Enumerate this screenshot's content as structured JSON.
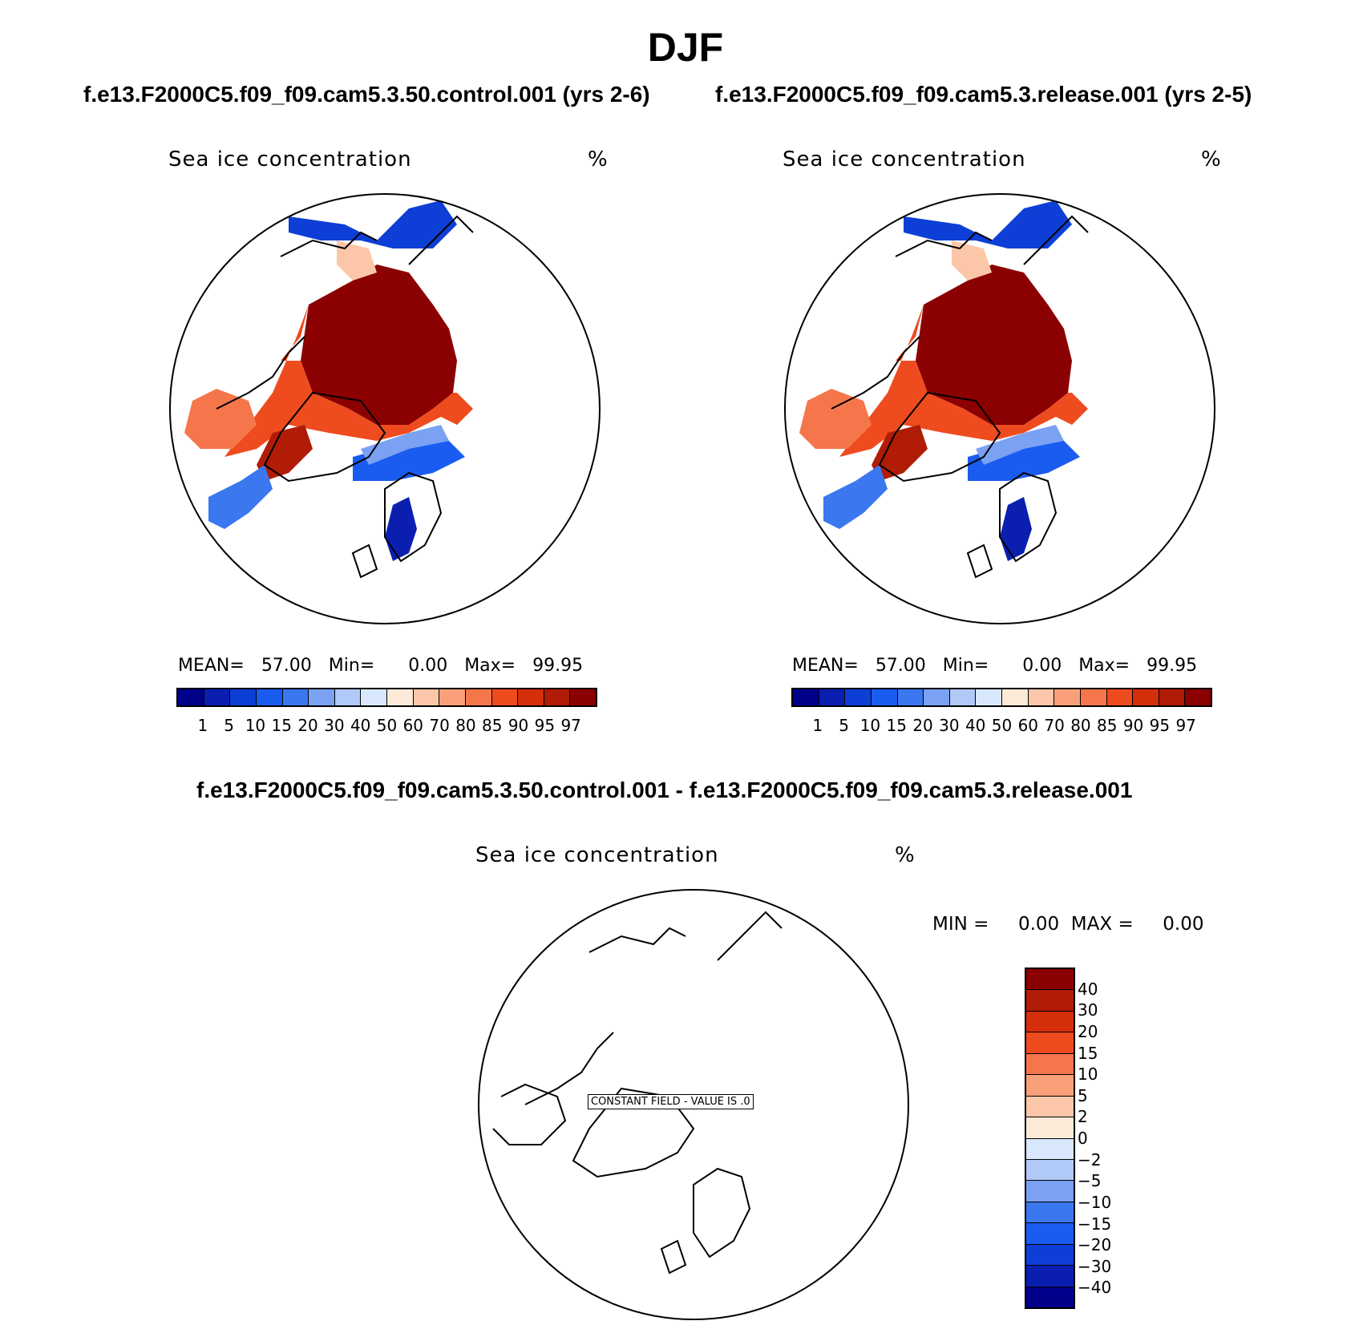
{
  "season": "DJF",
  "panels": [
    {
      "case_title": "f.e13.F2000C5.f09_f09.cam5.3.50.control.001 (yrs 2-6)",
      "var_name": "Sea ice concentration",
      "units": "%",
      "stats": {
        "mean_label": "MEAN=",
        "mean": "57.00",
        "min_label": "Min=",
        "min": "0.00",
        "max_label": "Max=",
        "max": "99.95"
      },
      "levels": [
        "1",
        "5",
        "10",
        "15",
        "20",
        "30",
        "40",
        "50",
        "60",
        "70",
        "80",
        "85",
        "90",
        "95",
        "97"
      ]
    },
    {
      "case_title": "f.e13.F2000C5.f09_f09.cam5.3.release.001 (yrs 2-5)",
      "var_name": "Sea ice concentration",
      "units": "%",
      "stats": {
        "mean_label": "MEAN=",
        "mean": "57.00",
        "min_label": "Min=",
        "min": "0.00",
        "max_label": "Max=",
        "max": "99.95"
      },
      "levels": [
        "1",
        "5",
        "10",
        "15",
        "20",
        "30",
        "40",
        "50",
        "60",
        "70",
        "80",
        "85",
        "90",
        "95",
        "97"
      ]
    }
  ],
  "diff_panel": {
    "title": "f.e13.F2000C5.f09_f09.cam5.3.50.control.001 - f.e13.F2000C5.f09_f09.cam5.3.release.001",
    "var_name": "Sea ice concentration",
    "units": "%",
    "stats_text": "MIN =     0.00  MAX =     0.00",
    "constant_field_label": "CONSTANT FIELD - VALUE IS .0",
    "levels": [
      "40",
      "30",
      "20",
      "15",
      "10",
      "5",
      "2",
      "0",
      "−2",
      "−5",
      "−10",
      "−15",
      "−20",
      "−30",
      "−40"
    ]
  },
  "colors": {
    "abs_scale": [
      "#00008b",
      "#0a1fb0",
      "#0d3fd6",
      "#1a5cf0",
      "#3b78ef",
      "#7aa1f2",
      "#b0c9f7",
      "#d8e7fb",
      "#fde9d8",
      "#fcc7a8",
      "#f9a07a",
      "#f5764a",
      "#ee4b1f",
      "#d42e0b",
      "#b01c05",
      "#8b0000"
    ],
    "diff_scale": [
      "#8b0000",
      "#b01c05",
      "#d42e0b",
      "#ee4b1f",
      "#f5764a",
      "#f9a07a",
      "#fcc7a8",
      "#fde9d8",
      "#d8e7fb",
      "#b0c9f7",
      "#7aa1f2",
      "#3b78ef",
      "#1a5cf0",
      "#0d3fd6",
      "#0a1fb0",
      "#00008b"
    ]
  },
  "chart_data": [
    {
      "type": "heatmap",
      "title": "f.e13.F2000C5.f09_f09.cam5.3.50.control.001 (yrs 2-6)",
      "variable": "Sea ice concentration",
      "units": "%",
      "projection": "polar stereographic (north pole)",
      "mean": 57.0,
      "min": 0.0,
      "max": 99.95,
      "contour_levels": [
        1,
        5,
        10,
        15,
        20,
        30,
        40,
        50,
        60,
        70,
        80,
        85,
        90,
        95,
        97
      ]
    },
    {
      "type": "heatmap",
      "title": "f.e13.F2000C5.f09_f09.cam5.3.release.001 (yrs 2-5)",
      "variable": "Sea ice concentration",
      "units": "%",
      "projection": "polar stereographic (north pole)",
      "mean": 57.0,
      "min": 0.0,
      "max": 99.95,
      "contour_levels": [
        1,
        5,
        10,
        15,
        20,
        30,
        40,
        50,
        60,
        70,
        80,
        85,
        90,
        95,
        97
      ]
    },
    {
      "type": "heatmap",
      "title": "f.e13.F2000C5.f09_f09.cam5.3.50.control.001 - f.e13.F2000C5.f09_f09.cam5.3.release.001",
      "variable": "Sea ice concentration",
      "units": "%",
      "projection": "polar stereographic (north pole)",
      "min": 0.0,
      "max": 0.0,
      "constant_value": 0,
      "contour_levels": [
        -40,
        -30,
        -20,
        -15,
        -10,
        -5,
        -2,
        0,
        2,
        5,
        10,
        15,
        20,
        30,
        40
      ]
    }
  ]
}
